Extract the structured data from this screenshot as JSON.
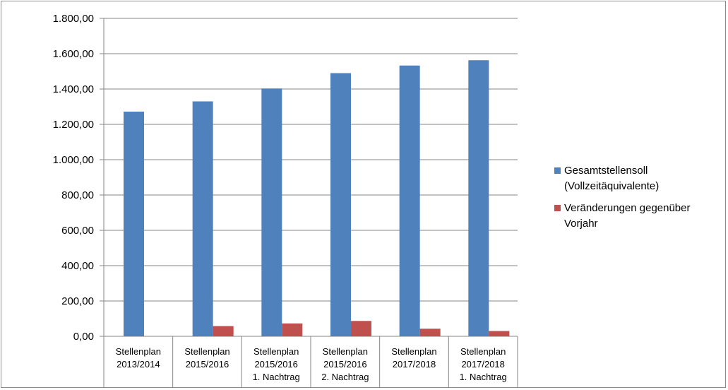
{
  "chart_data": {
    "type": "bar",
    "categories": [
      [
        "Stellenplan",
        "2013/2014"
      ],
      [
        "Stellenplan",
        "2015/2016"
      ],
      [
        "Stellenplan",
        "2015/2016",
        "1. Nachtrag"
      ],
      [
        "Stellenplan",
        "2015/2016",
        "2. Nachtrag"
      ],
      [
        "Stellenplan",
        "2017/2018"
      ],
      [
        "Stellenplan",
        "2017/2018",
        "1. Nachtrag"
      ]
    ],
    "series": [
      {
        "name": "Gesamtstellensoll (Vollzeitäquivalente)",
        "color": "#4f81bd",
        "values": [
          1272,
          1330,
          1403,
          1490,
          1533,
          1563
        ]
      },
      {
        "name": "Veränderungen gegenüber Vorjahr",
        "color": "#c0504d",
        "values": [
          0,
          58,
          73,
          87,
          43,
          30
        ]
      }
    ],
    "ylim": [
      0,
      1800
    ],
    "yticks": [
      "0,00",
      "200,00",
      "400,00",
      "600,00",
      "800,00",
      "1.000,00",
      "1.200,00",
      "1.400,00",
      "1.600,00",
      "1.800,00"
    ],
    "grid": true,
    "legend_position": "right"
  }
}
